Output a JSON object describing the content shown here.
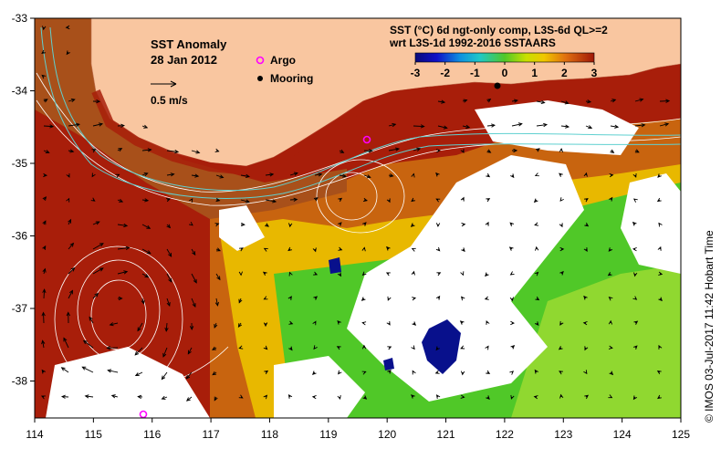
{
  "title": {
    "line1": "SST Anomaly",
    "line2": "28 Jan 2012"
  },
  "legend": {
    "argo": "Argo",
    "mooring": "Mooring",
    "arrow_scale": "0.5 m/s"
  },
  "colorbar": {
    "title_line1": "SST (°C) 6d ngt-only comp, L3S-6d QL>=2",
    "title_line2": "wrt L3S-1d 1992-2016 SSTAARS",
    "ticks": [
      "-3",
      "-2",
      "-1",
      "0",
      "1",
      "2",
      "3"
    ],
    "range": [
      -3,
      3
    ]
  },
  "axes": {
    "lon_ticks": [
      "114",
      "115",
      "116",
      "117",
      "118",
      "119",
      "120",
      "121",
      "122",
      "123",
      "124",
      "125"
    ],
    "lat_ticks": [
      "-33",
      "-34",
      "-35",
      "-36",
      "-37",
      "-38"
    ]
  },
  "credit": "© IMOS 03-Jul-2017 11:42 Hobart Time",
  "colors": {
    "land": "#f9c6a0",
    "warm": "#a81e0a",
    "orange": "#d2690f",
    "yellow": "#e8c800",
    "green": "#50c828",
    "navy": "#08108c",
    "contour": "#ffffff",
    "coast_contour": "#5fd0d0",
    "argo": "#ff00ff"
  }
}
